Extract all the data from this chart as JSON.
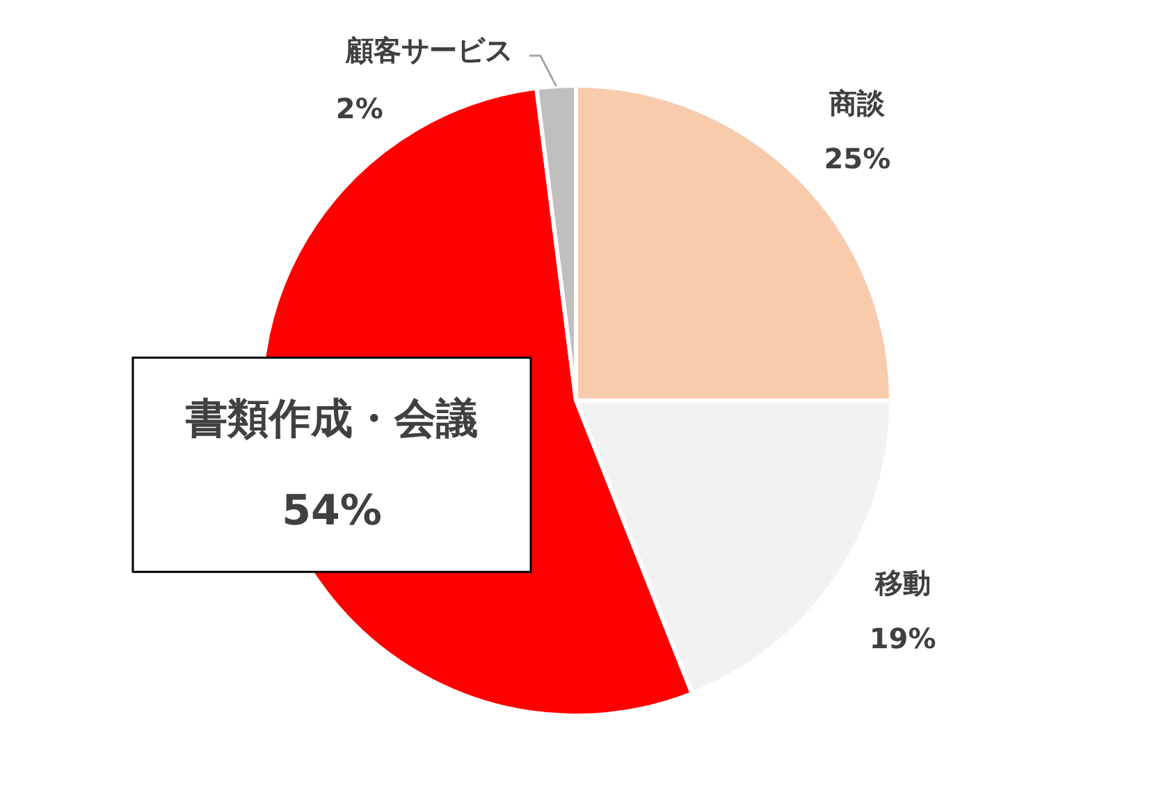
{
  "chart_data": {
    "type": "pie",
    "categories": [
      "商談",
      "移動",
      "書類作成・会議",
      "顧客サービス"
    ],
    "values": [
      25,
      19,
      54,
      2
    ],
    "colors": [
      "#f8cbad",
      "#f2f2f2",
      "#ff0000",
      "#bfbfbf"
    ],
    "value_labels": [
      "25%",
      "19%",
      "54%",
      "2%"
    ],
    "legend": false
  }
}
